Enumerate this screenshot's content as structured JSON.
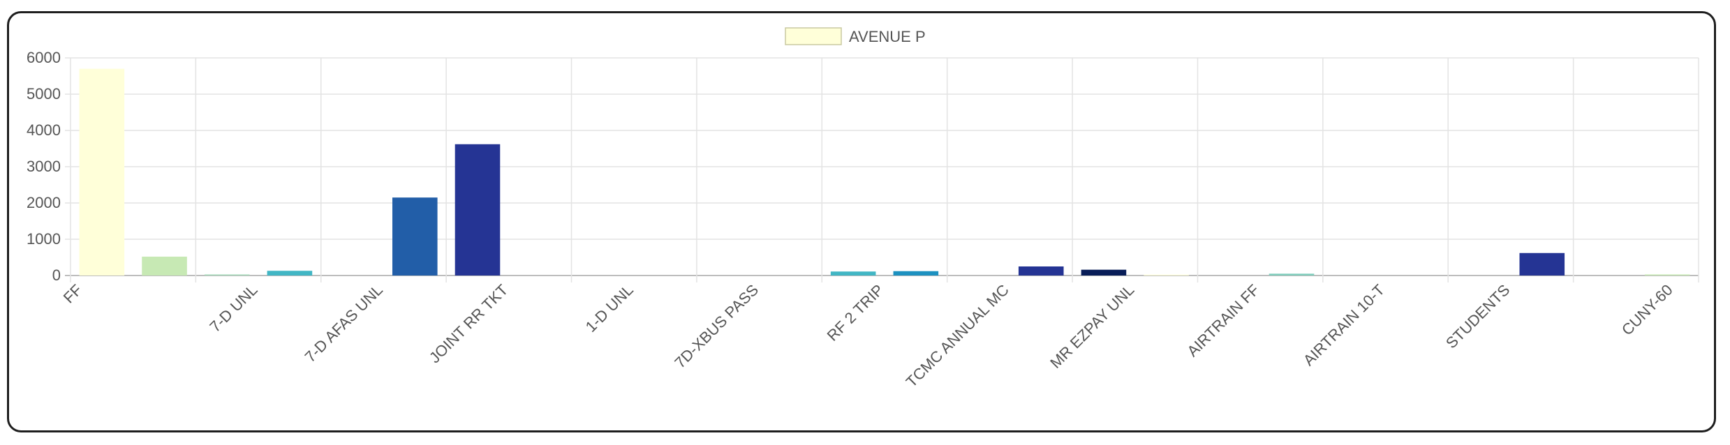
{
  "chart_data": {
    "type": "bar",
    "title": "",
    "xlabel": "",
    "ylabel": "",
    "ylim": [
      0,
      6000
    ],
    "yticks": [
      0,
      1000,
      2000,
      3000,
      4000,
      5000,
      6000
    ],
    "legend": {
      "position": "top-center",
      "label": "AVENUE P",
      "swatch_color": "#ffffd9",
      "swatch_border": "#c8c8a0"
    },
    "grid": true,
    "tick_labels": [
      "FF",
      "7-D UNL",
      "7-D AFAS UNL",
      "JOINT RR TKT",
      "1-D UNL",
      "7D-XBUS PASS",
      "RF 2 TRIP",
      "TCMC ANNUAL MC",
      "MR EZPAY UNL",
      "AIRTRAIN FF",
      "AIRTRAIN 10-T",
      "STUDENTS",
      "CUNY-60"
    ],
    "bars": [
      {
        "value": 5700,
        "color": "#ffffd9"
      },
      {
        "value": 520,
        "color": "#c7e9b4"
      },
      {
        "value": 30,
        "color": "#a7dbbb"
      },
      {
        "value": 130,
        "color": "#41b6c4"
      },
      {
        "value": 0,
        "color": "#2c7fb8"
      },
      {
        "value": 2150,
        "color": "#225ea8"
      },
      {
        "value": 3620,
        "color": "#253494"
      },
      {
        "value": 0,
        "color": "#081d58"
      },
      {
        "value": 0,
        "color": "#ffffd9"
      },
      {
        "value": 0,
        "color": "#c7e9b4"
      },
      {
        "value": 0,
        "color": "#7fcdbb"
      },
      {
        "value": 0,
        "color": "#41b6c4"
      },
      {
        "value": 110,
        "color": "#41b6c4"
      },
      {
        "value": 120,
        "color": "#1d91c0"
      },
      {
        "value": 0,
        "color": "#225ea8"
      },
      {
        "value": 250,
        "color": "#253494"
      },
      {
        "value": 160,
        "color": "#081d58"
      },
      {
        "value": 25,
        "color": "#ffffd9"
      },
      {
        "value": 0,
        "color": "#c7e9b4"
      },
      {
        "value": 50,
        "color": "#7fcdbb"
      },
      {
        "value": 0,
        "color": "#41b6c4"
      },
      {
        "value": 0,
        "color": "#1d91c0"
      },
      {
        "value": 0,
        "color": "#225ea8"
      },
      {
        "value": 620,
        "color": "#253494"
      },
      {
        "value": 0,
        "color": "#081d58"
      },
      {
        "value": 30,
        "color": "#c7e9b4"
      }
    ]
  }
}
